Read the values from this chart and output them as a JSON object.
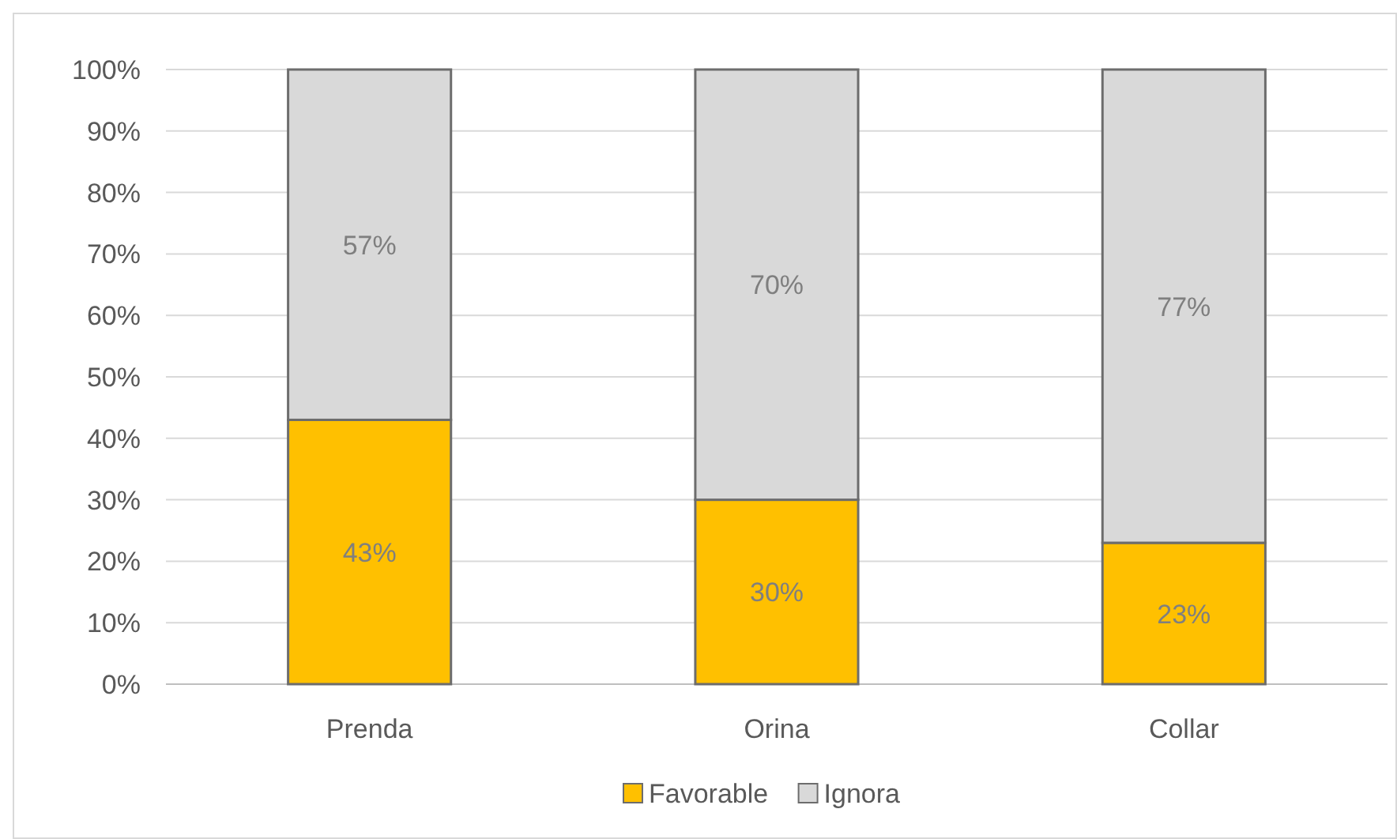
{
  "chart_data": {
    "type": "bar",
    "stacked": true,
    "categories": [
      "Prenda",
      "Orina",
      "Collar"
    ],
    "series": [
      {
        "name": "Favorable",
        "color": "#ffc000",
        "values": [
          43,
          30,
          23
        ],
        "value_labels": [
          "43%",
          "30%",
          "23%"
        ]
      },
      {
        "name": "Ignora",
        "color": "#d9d9d9",
        "values": [
          57,
          70,
          77
        ],
        "value_labels": [
          "57%",
          "70%",
          "77%"
        ]
      }
    ],
    "ylim": [
      0,
      100
    ],
    "yticks": [
      {
        "value": 0,
        "label": "0%"
      },
      {
        "value": 10,
        "label": "10%"
      },
      {
        "value": 20,
        "label": "20%"
      },
      {
        "value": 30,
        "label": "30%"
      },
      {
        "value": 40,
        "label": "40%"
      },
      {
        "value": 50,
        "label": "50%"
      },
      {
        "value": 60,
        "label": "60%"
      },
      {
        "value": 70,
        "label": "70%"
      },
      {
        "value": 80,
        "label": "80%"
      },
      {
        "value": 90,
        "label": "90%"
      },
      {
        "value": 100,
        "label": "100%"
      }
    ],
    "grid": "y",
    "legend": "bottom"
  }
}
